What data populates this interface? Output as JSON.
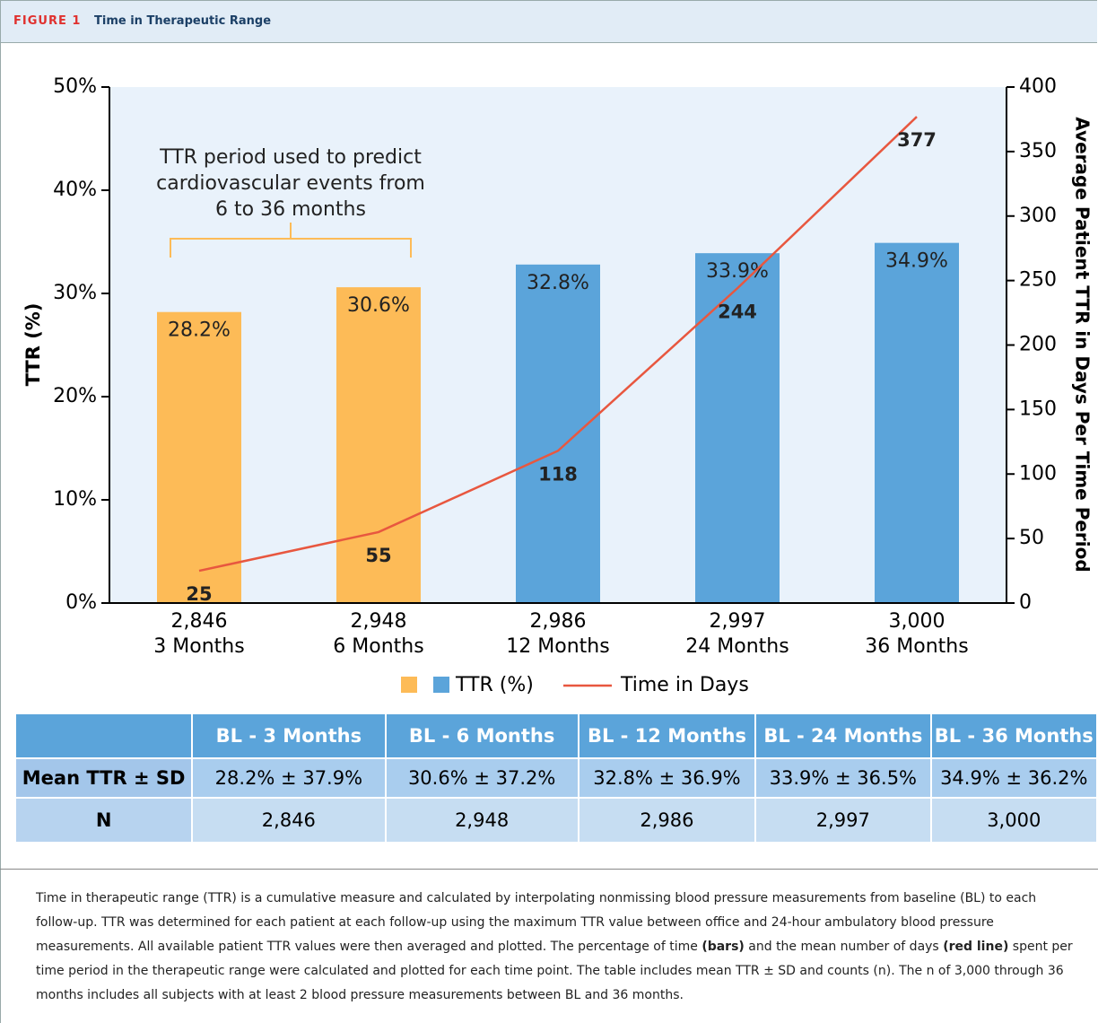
{
  "header": {
    "label": "FIGURE 1",
    "title": "Time in Therapeutic Range"
  },
  "chart_data": {
    "type": "bar-line",
    "categories": [
      "3 Months",
      "6 Months",
      "12 Months",
      "24 Months",
      "36 Months"
    ],
    "category_counts": [
      "2,846",
      "2,948",
      "2,986",
      "2,997",
      "3,000"
    ],
    "ylabel": "TTR (%)",
    "y2label": "Average Patient TTR in Days Per Time Period",
    "ylim": [
      0,
      50
    ],
    "yticks": [
      {
        "value": 0,
        "label": "0%"
      },
      {
        "value": 10,
        "label": "10%"
      },
      {
        "value": 20,
        "label": "20%"
      },
      {
        "value": 30,
        "label": "30%"
      },
      {
        "value": 40,
        "label": "40%"
      },
      {
        "value": 50,
        "label": "50%"
      }
    ],
    "y2lim": [
      0,
      400
    ],
    "y2ticks": [
      0,
      50,
      100,
      150,
      200,
      250,
      300,
      350,
      400
    ],
    "series": [
      {
        "name": "TTR (%)",
        "type": "bar",
        "colors": [
          "#fdbb57",
          "#fdbb57",
          "#5ba4da",
          "#5ba4da",
          "#5ba4da"
        ],
        "values": [
          28.2,
          30.6,
          32.8,
          33.9,
          34.9
        ],
        "value_labels": [
          "28.2%",
          "30.6%",
          "32.8%",
          "33.9%",
          "34.9%"
        ]
      },
      {
        "name": "Time in Days",
        "type": "line",
        "axis": "y2",
        "color": "#e8573f",
        "values": [
          25,
          55,
          118,
          244,
          377
        ]
      }
    ],
    "annotation": [
      "TTR period used to predict",
      "cardiovascular events from",
      "6 to 36 months"
    ]
  },
  "table": {
    "header": [
      "BL - 3 Months",
      "BL - 6 Months",
      "BL - 12 Months",
      "BL - 24 Months",
      "BL - 36 Months"
    ],
    "rows": [
      [
        "Mean TTR ± SD",
        "28.2% ± 37.9%",
        "30.6% ± 37.2%",
        "32.8% ± 36.9%",
        "33.9% ± 36.5%",
        "34.9% ± 36.2%"
      ],
      [
        "N",
        "2,846",
        "2,948",
        "2,986",
        "2,997",
        "3,000"
      ]
    ]
  },
  "caption": [
    "Time in therapeutic range (TTR) is a cumulative measure and calculated by interpolating nonmissing blood pressure measurements from baseline (BL) to each follow-up. TTR was determined for each patient at each follow-up using the maximum TTR value between office and 24-hour ambulatory blood pressure measurements. All available patient TTR values were then averaged and plotted. The percentage of time ",
    "(bars)",
    " and the mean number of days ",
    "(red line)",
    " spent per time period in the therapeutic range were calculated and plotted for each time point. The table includes mean TTR ± SD and counts (n). The n of 3,000 through 36 months includes all subjects with at least 2 blood pressure measurements between BL and 36 months."
  ]
}
